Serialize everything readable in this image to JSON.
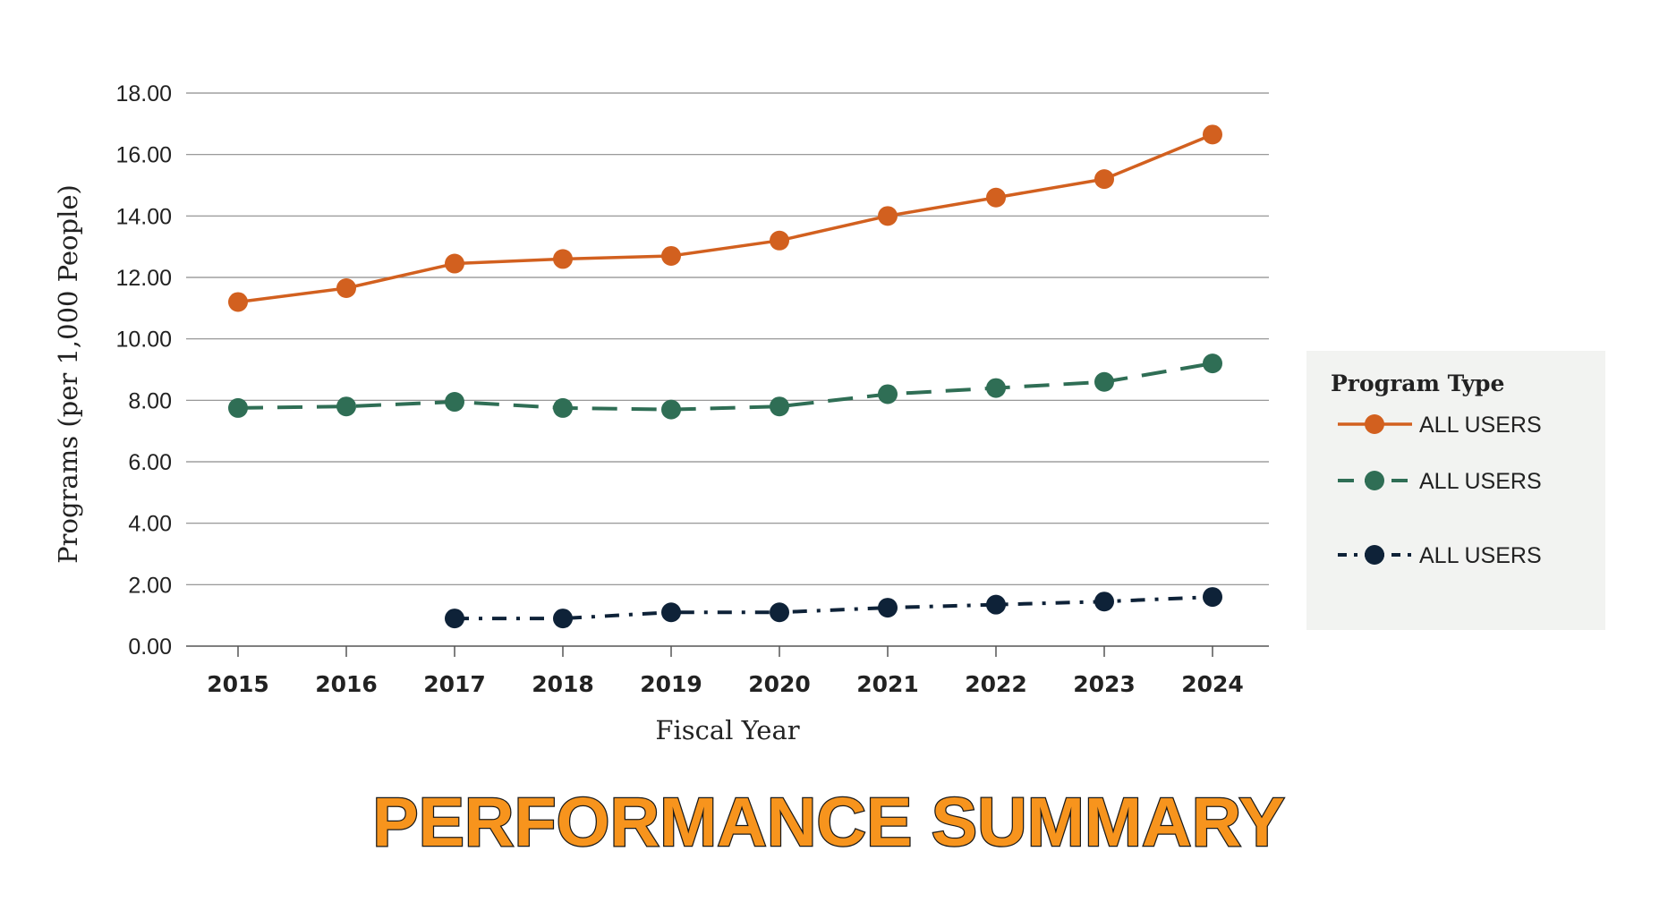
{
  "chart_data": {
    "type": "line",
    "xlabel": "Fiscal Year",
    "ylabel": "Programs (per 1,000 People)",
    "categories": [
      "2015",
      "2016",
      "2017",
      "2018",
      "2019",
      "2020",
      "2021",
      "2022",
      "2023",
      "2024"
    ],
    "ylim": [
      0,
      18
    ],
    "yticks": [
      "0.00",
      "2.00",
      "4.00",
      "6.00",
      "8.00",
      "10.00",
      "12.00",
      "16.00",
      "18.00"
    ],
    "yticks_all": [
      "0.00",
      "2.00",
      "4.00",
      "6.00",
      "8.00",
      "10.00",
      "12.00",
      "14.00",
      "16.00",
      "18.00"
    ],
    "grid": "horizontal",
    "legend": {
      "title": "Program Type",
      "placement": "right"
    },
    "series": [
      {
        "name": "ALL USERS",
        "color": "#D2601F",
        "style": "solid",
        "values": [
          11.2,
          11.65,
          12.45,
          12.6,
          12.7,
          13.2,
          14.0,
          14.6,
          15.2,
          16.65
        ]
      },
      {
        "name": "ALL USERS",
        "color": "#2F6E55",
        "style": "dashed",
        "values": [
          7.75,
          7.8,
          7.95,
          7.75,
          7.7,
          7.8,
          8.2,
          8.4,
          8.6,
          9.2
        ]
      },
      {
        "name": "ALL USERS",
        "color": "#0E2238",
        "style": "dash-dot",
        "values": [
          null,
          null,
          0.9,
          0.9,
          1.1,
          1.1,
          1.25,
          1.35,
          1.45,
          1.6
        ]
      }
    ]
  },
  "banner": {
    "text": "PERFORMANCE SUMMARY",
    "color": "#F7941D"
  },
  "legend_bg": "#F2F3F1"
}
